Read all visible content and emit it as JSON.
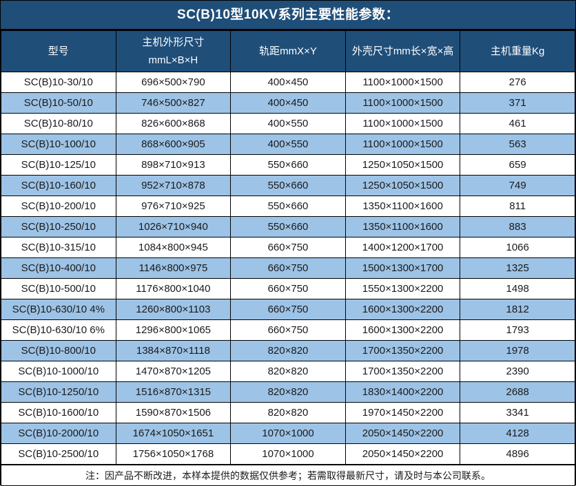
{
  "title": "SC(B)10型10KV系列主要性能参数：",
  "header": {
    "model": "型号",
    "dimensions_line1": "主机外形尺寸",
    "dimensions_line2": "mmL×B×H",
    "gauge": "轨距mmX×Y",
    "shell": "外壳尺寸mm长×宽×高",
    "weight": "主机重量Kg"
  },
  "note": "注：因产品不断改进，本样本提供的数据仅供参考；若需取得最新尺寸，请及时与本公司联系。",
  "colors": {
    "header_bg": "#1F4E79",
    "alt_row_bg": "#9DC3E6",
    "row_bg": "#FFFFFF",
    "border": "#000000",
    "header_text": "#FFFFFF",
    "body_text": "#1A1A1A"
  },
  "chart_data": {
    "type": "table",
    "title": "SC(B)10型10KV系列主要性能参数：",
    "columns": [
      "型号",
      "主机外形尺寸 mmL×B×H",
      "轨距mmX×Y",
      "外壳尺寸mm长×宽×高",
      "主机重量Kg"
    ],
    "rows": [
      [
        "SC(B)10-30/10",
        "696×500×790",
        "400×450",
        "1100×1000×1500",
        "276"
      ],
      [
        "SC(B)10-50/10",
        "746×500×827",
        "400×450",
        "1100×1000×1500",
        "371"
      ],
      [
        "SC(B)10-80/10",
        "826×600×868",
        "400×550",
        "1100×1000×1500",
        "461"
      ],
      [
        "SC(B)10-100/10",
        "868×600×905",
        "400×550",
        "1100×1000×1500",
        "563"
      ],
      [
        "SC(B)10-125/10",
        "898×710×913",
        "550×660",
        "1250×1050×1500",
        "659"
      ],
      [
        "SC(B)10-160/10",
        "952×710×878",
        "550×660",
        "1250×1050×1500",
        "749"
      ],
      [
        "SC(B)10-200/10",
        "976×710×925",
        "550×660",
        "1350×1100×1600",
        "811"
      ],
      [
        "SC(B)10-250/10",
        "1026×710×940",
        "550×660",
        "1350×1100×1600",
        "883"
      ],
      [
        "SC(B)10-315/10",
        "1084×800×945",
        "660×750",
        "1400×1200×1700",
        "1066"
      ],
      [
        "SC(B)10-400/10",
        "1146×800×975",
        "660×750",
        "1500×1300×1700",
        "1325"
      ],
      [
        "SC(B)10-500/10",
        "1176×800×1040",
        "660×750",
        "1550×1300×2200",
        "1498"
      ],
      [
        "SC(B)10-630/10 4%",
        "1260×800×1103",
        "660×750",
        "1600×1300×2200",
        "1812"
      ],
      [
        "SC(B)10-630/10 6%",
        "1296×800×1065",
        "660×750",
        "1600×1300×2200",
        "1793"
      ],
      [
        "SC(B)10-800/10",
        "1384×870×1118",
        "820×820",
        "1700×1350×2200",
        "1978"
      ],
      [
        "SC(B)10-1000/10",
        "1470×870×1205",
        "820×820",
        "1700×1350×2200",
        "2390"
      ],
      [
        "SC(B)10-1250/10",
        "1516×870×1315",
        "820×820",
        "1830×1400×2200",
        "2688"
      ],
      [
        "SC(B)10-1600/10",
        "1590×870×1506",
        "820×820",
        "1970×1450×2200",
        "3341"
      ],
      [
        "SC(B)10-2000/10",
        "1674×1050×1651",
        "1070×1000",
        "2050×1450×2200",
        "4128"
      ],
      [
        "SC(B)10-2500/10",
        "1756×1050×1768",
        "1070×1000",
        "2050×1450×2200",
        "4896"
      ]
    ]
  }
}
